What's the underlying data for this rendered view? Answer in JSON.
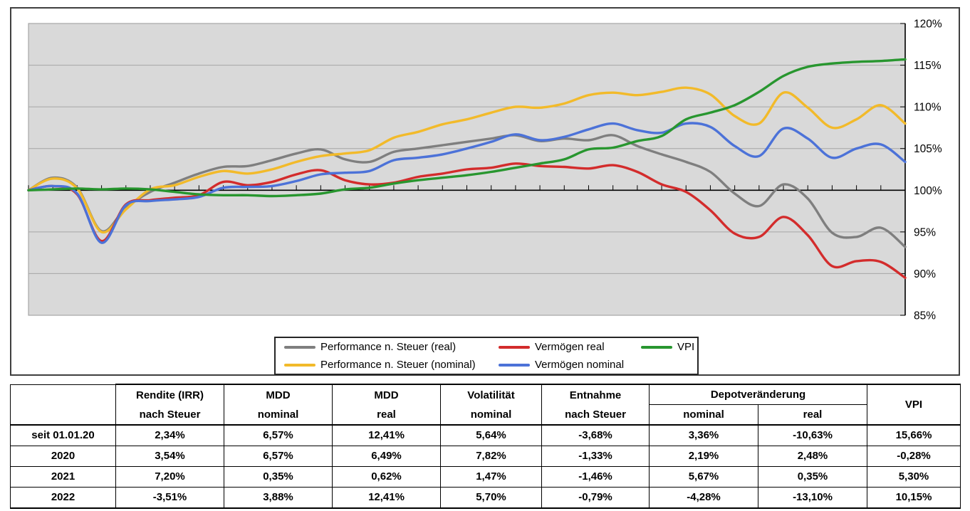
{
  "chart_data": {
    "type": "line",
    "title": "",
    "x_label": "",
    "x_unit": "months since 01.01.2020",
    "x_months": 36,
    "x_ticks": "monthly tick marks on the 100% baseline, no x tick labels",
    "grid": true,
    "plot_background": "#d9d9d9",
    "gridline_color": "#a6a6a6",
    "legend_position": "bottom-center box, two rows",
    "y_axis": {
      "side": "right",
      "min": 85,
      "max": 120,
      "step": 5,
      "baseline": 100,
      "ticks": [
        "120%",
        "115%",
        "110%",
        "105%",
        "100%",
        "95%",
        "90%",
        "85%"
      ]
    },
    "series": [
      {
        "name": "Performance n. Steuer (real)",
        "color": "#7f7f7f",
        "values": [
          100,
          101.5,
          100.3,
          95.1,
          97.9,
          99.8,
          100.9,
          102.0,
          102.8,
          102.9,
          103.6,
          104.4,
          104.9,
          103.7,
          103.4,
          104.6,
          105.0,
          105.4,
          105.8,
          106.2,
          106.6,
          105.9,
          106.2,
          106.0,
          106.6,
          105.3,
          104.3,
          103.4,
          102.2,
          99.6,
          98.1,
          100.7,
          99.0,
          94.9,
          94.4,
          95.5,
          93.2
        ]
      },
      {
        "name": "Performance n. Steuer (nominal)",
        "color": "#f2ba2a",
        "values": [
          100,
          101.4,
          100.2,
          95.0,
          97.7,
          100.1,
          100.6,
          101.6,
          102.3,
          102.0,
          102.5,
          103.4,
          104.1,
          104.4,
          104.8,
          106.3,
          107.0,
          107.9,
          108.5,
          109.3,
          110.0,
          109.9,
          110.4,
          111.4,
          111.7,
          111.4,
          111.8,
          112.3,
          111.5,
          108.9,
          108.0,
          111.7,
          109.9,
          107.5,
          108.5,
          110.2,
          108.0
        ]
      },
      {
        "name": "Vermögen real",
        "color": "#d32c2c",
        "values": [
          100,
          100.5,
          99.5,
          93.9,
          98.3,
          98.8,
          99.1,
          99.4,
          101.0,
          100.6,
          101.0,
          101.9,
          102.4,
          101.2,
          100.7,
          100.9,
          101.6,
          102.0,
          102.5,
          102.7,
          103.2,
          102.9,
          102.8,
          102.6,
          103.0,
          102.2,
          100.7,
          99.8,
          97.6,
          94.8,
          94.4,
          96.8,
          94.6,
          90.9,
          91.5,
          91.4,
          89.5
        ]
      },
      {
        "name": "Vermögen nominal",
        "color": "#4c72d8",
        "values": [
          100,
          100.5,
          99.6,
          93.7,
          98.2,
          98.7,
          98.9,
          99.2,
          100.3,
          100.4,
          100.5,
          101.1,
          101.9,
          102.1,
          102.3,
          103.6,
          103.9,
          104.3,
          105.0,
          105.8,
          106.7,
          106.0,
          106.4,
          107.3,
          108.0,
          107.2,
          106.9,
          108.0,
          107.6,
          105.3,
          104.1,
          107.4,
          106.2,
          103.9,
          105.0,
          105.5,
          103.4
        ]
      },
      {
        "name": "VPI",
        "color": "#28962f",
        "values": [
          100,
          100.1,
          100.2,
          100.1,
          100.2,
          100.1,
          99.8,
          99.5,
          99.4,
          99.4,
          99.3,
          99.4,
          99.6,
          100.1,
          100.3,
          100.8,
          101.2,
          101.5,
          101.8,
          102.2,
          102.7,
          103.2,
          103.7,
          104.9,
          105.1,
          105.9,
          106.5,
          108.5,
          109.3,
          110.2,
          111.8,
          113.7,
          114.8,
          115.2,
          115.4,
          115.5,
          115.7
        ]
      }
    ]
  },
  "table": {
    "headers": [
      {
        "line1": "Rendite (IRR)",
        "line2": "nach Steuer"
      },
      {
        "line1": "MDD",
        "line2": "nominal"
      },
      {
        "line1": "MDD",
        "line2": "real"
      },
      {
        "line1": "Volatilität",
        "line2": "nominal"
      },
      {
        "line1": "Entnahme",
        "line2": "nach Steuer"
      }
    ],
    "depot": {
      "title": "Depotveränderung",
      "sub1": "nominal",
      "sub2": "real"
    },
    "vpi_header": "VPI",
    "rows": [
      {
        "label": "seit 01.01.20",
        "values": [
          "2,34%",
          "6,57%",
          "12,41%",
          "5,64%",
          "-3,68%",
          "3,36%",
          "-10,63%",
          "15,66%"
        ]
      },
      {
        "label": "2020",
        "values": [
          "3,54%",
          "6,57%",
          "6,49%",
          "7,82%",
          "-1,33%",
          "2,19%",
          "2,48%",
          "-0,28%"
        ]
      },
      {
        "label": "2021",
        "values": [
          "7,20%",
          "0,35%",
          "0,62%",
          "1,47%",
          "-1,46%",
          "5,67%",
          "0,35%",
          "5,30%"
        ]
      },
      {
        "label": "2022",
        "values": [
          "-3,51%",
          "3,88%",
          "12,41%",
          "5,70%",
          "-0,79%",
          "-4,28%",
          "-13,10%",
          "10,15%"
        ]
      }
    ]
  }
}
